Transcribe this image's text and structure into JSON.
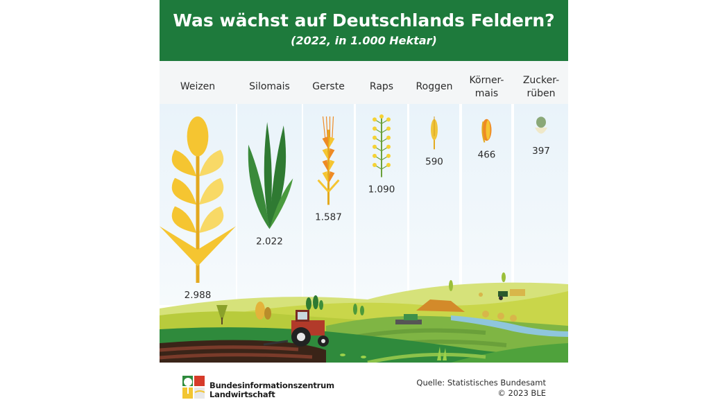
{
  "title": "Was wächst auf Deutschlands Feldern?",
  "subtitle": "(2022, in 1.000 Hektar)",
  "chart_data": {
    "type": "bar",
    "categories": [
      "Weizen",
      "Silomais",
      "Gerste",
      "Raps",
      "Roggen",
      "Körner-mais",
      "Zucker-rüben"
    ],
    "category_lines": [
      [
        "Weizen"
      ],
      [
        "Silomais"
      ],
      [
        "Gerste"
      ],
      [
        "Raps"
      ],
      [
        "Roggen"
      ],
      [
        "Körner-",
        "mais"
      ],
      [
        "Zucker-",
        "rüben"
      ]
    ],
    "values": [
      2988,
      2022,
      1587,
      1090,
      590,
      466,
      397
    ],
    "value_labels": [
      "2.988",
      "2.022",
      "1.587",
      "1.090",
      "590",
      "466",
      "397"
    ],
    "icons": [
      "wheat-icon",
      "silage-maize-icon",
      "barley-icon",
      "rapeseed-icon",
      "rye-icon",
      "grain-maize-icon",
      "sugar-beet-icon"
    ],
    "colors": {
      "yellow": "#f5c531",
      "dark_yellow": "#e3a91f",
      "orange": "#ee8a24",
      "green": "#2f7a32",
      "light_green": "#9bbf3a"
    }
  },
  "footer": {
    "org_line1": "Bundesinformationszentrum",
    "org_line2": "Landwirtschaft",
    "source_line1": "Quelle: Statistisches Bundesamt",
    "source_line2": "© 2023 BLE"
  },
  "colors": {
    "header_bg": "#1e7a3c",
    "column_bg": "#eef5fa"
  }
}
